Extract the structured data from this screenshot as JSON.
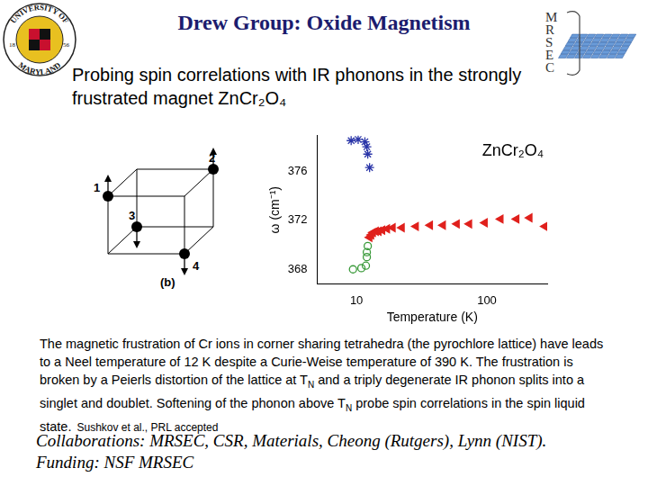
{
  "header": {
    "title": "Drew Group: Oxide Magnetism",
    "left_logo": {
      "top_text": "UNIVERSITY OF",
      "bottom_text": "MARYLAND",
      "left_year": "18",
      "right_year": "56"
    },
    "right_logo": {
      "letters": [
        "M",
        "R",
        "S",
        "E",
        "C"
      ]
    }
  },
  "subtitle": "Probing spin correlations with IR phonons in the strongly frustrated magnet ZnCr₂O₄",
  "diagram": {
    "labels": [
      "1",
      "2",
      "3",
      "4"
    ],
    "caption": "(b)"
  },
  "chart_data": {
    "type": "scatter",
    "title": "ZnCr₂O₄",
    "x_label": "Temperature (K)",
    "y_label": "ω (cm⁻¹)",
    "log": "x",
    "grid": false,
    "xlim": [
      5,
      290
    ],
    "xticks": [
      10,
      100
    ],
    "ylim": [
      366.8,
      378.9
    ],
    "yticks": [
      368,
      372,
      376
    ],
    "series": [
      {
        "color": "#2a35a8",
        "marker": "star",
        "x": [
          9.1,
          10.3,
          11.6,
          12.0,
          12.2,
          12.6
        ],
        "values": [
          378.5,
          378.6,
          378.4,
          378.0,
          377.4,
          376.3
        ]
      },
      {
        "color": "#3a9a3a",
        "marker": "circle_open",
        "x": [
          12.2,
          12.0,
          12.0,
          11.8,
          10.9,
          9.4
        ],
        "values": [
          369.9,
          369.4,
          369.0,
          368.3,
          368.1,
          368.0
        ]
      },
      {
        "color": "#e0201c",
        "marker": "triangle_left",
        "x": [
          12.6,
          13.0,
          13.4,
          14.1,
          14.8,
          15.8,
          17.2,
          19.0,
          22.3,
          28.6,
          36.7,
          46.1,
          58.9,
          73.3,
          96.5,
          127.6,
          168.9,
          212.8,
          278.5
        ],
        "values": [
          370.6,
          370.8,
          371.0,
          371.1,
          371.1,
          371.2,
          371.3,
          371.4,
          371.4,
          371.5,
          371.6,
          371.6,
          371.7,
          371.7,
          371.8,
          372.1,
          372.1,
          372.2,
          371.5
        ]
      }
    ]
  },
  "paragraph": {
    "runs": [
      {
        "text": "The magnetic frustration of Cr ions in corner sharing tetrahedra (the pyrochlore lattice) have leads to a Neel temperature of 12 K despite a Curie-Weise temperature of 390 K. The frustration is broken by a Peierls distortion of the lattice at T"
      },
      {
        "text": "N",
        "sub": true
      },
      {
        "text": " and a triply degenerate IR phonon splits into a singlet and doublet. Softening of the phonon above T"
      },
      {
        "text": "N",
        "sub": true
      },
      {
        "text": " probe spin correlations in the spin liquid state."
      }
    ],
    "citation": "Sushkov et al., PRL accepted"
  },
  "footer": [
    "Collaborations: MRSEC, CSR, Materials, Cheong (Rutgers), Lynn (NIST).",
    "Funding: NSF MRSEC"
  ]
}
